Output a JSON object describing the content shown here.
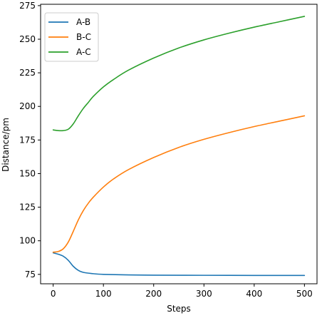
{
  "chart_data": {
    "type": "line",
    "xlabel": "Steps",
    "ylabel": "Distance/pm",
    "xlim": [
      -25,
      525
    ],
    "ylim": [
      68,
      276
    ],
    "xticks": [
      0,
      100,
      200,
      300,
      400,
      500
    ],
    "yticks": [
      75,
      100,
      125,
      150,
      175,
      200,
      225,
      250,
      275
    ],
    "legend": "top-left",
    "grid": false,
    "series": [
      {
        "name": "A-B",
        "color": "#1f77b4",
        "x": [
          0,
          10,
          20,
          30,
          40,
          50,
          60,
          80,
          100,
          150,
          200,
          300,
          400,
          500
        ],
        "y": [
          91,
          90,
          88.5,
          85.5,
          81,
          78,
          76.5,
          75.5,
          75,
          74.6,
          74.4,
          74.3,
          74.2,
          74.2
        ]
      },
      {
        "name": "B-C",
        "color": "#ff7f0e",
        "x": [
          0,
          10,
          20,
          30,
          40,
          50,
          60,
          70,
          80,
          100,
          120,
          150,
          200,
          250,
          300,
          350,
          400,
          450,
          500
        ],
        "y": [
          91.5,
          92,
          94,
          99,
          107,
          115.5,
          122.5,
          128,
          132.5,
          140,
          146,
          153,
          162,
          169.5,
          175.5,
          180.5,
          185,
          189,
          193
        ]
      },
      {
        "name": "A-C",
        "color": "#2ca02c",
        "x": [
          0,
          10,
          20,
          30,
          40,
          50,
          60,
          70,
          80,
          100,
          120,
          150,
          200,
          250,
          300,
          350,
          400,
          450,
          500
        ],
        "y": [
          182.5,
          182,
          182,
          183,
          187,
          193,
          198.5,
          203,
          207.5,
          214.5,
          220,
          227,
          236,
          243.5,
          249.5,
          254.5,
          259,
          263,
          267
        ]
      }
    ]
  }
}
